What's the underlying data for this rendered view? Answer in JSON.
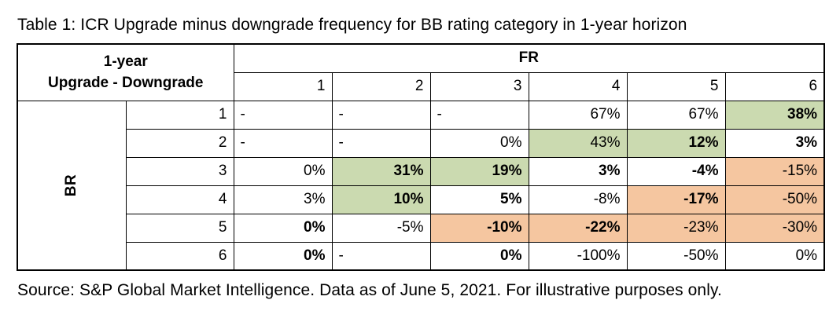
{
  "page": {
    "title": "Table 1: ICR Upgrade minus downgrade frequency for BB rating category in 1-year horizon",
    "source_note": "Source: S&P Global Market Intelligence. Data as of June 5, 2021. For illustrative purposes only."
  },
  "colors": {
    "positive_fill_green": "#cbdab0",
    "negative_fill_orange": "#f5c6a0",
    "border": "#000000",
    "text": "#000000"
  },
  "table": {
    "corner": {
      "line1": "1-year",
      "line2": "Upgrade - Downgrade"
    },
    "col_group_label": "FR",
    "row_group_label": "BR",
    "col_headers": [
      "1",
      "2",
      "3",
      "4",
      "5",
      "6"
    ],
    "row_headers": [
      "1",
      "2",
      "3",
      "4",
      "5",
      "6"
    ],
    "rows": [
      [
        {
          "text": "-",
          "fill": "none",
          "bold": false
        },
        {
          "text": "-",
          "fill": "none",
          "bold": false
        },
        {
          "text": "-",
          "fill": "none",
          "bold": false
        },
        {
          "text": "67%",
          "fill": "none",
          "bold": false
        },
        {
          "text": "67%",
          "fill": "none",
          "bold": false
        },
        {
          "text": "38%",
          "fill": "green",
          "bold": true
        }
      ],
      [
        {
          "text": "-",
          "fill": "none",
          "bold": false
        },
        {
          "text": "-",
          "fill": "none",
          "bold": false
        },
        {
          "text": "0%",
          "fill": "none",
          "bold": false
        },
        {
          "text": "43%",
          "fill": "green",
          "bold": false
        },
        {
          "text": "12%",
          "fill": "green",
          "bold": true
        },
        {
          "text": "3%",
          "fill": "none",
          "bold": true
        }
      ],
      [
        {
          "text": "0%",
          "fill": "none",
          "bold": false
        },
        {
          "text": "31%",
          "fill": "green",
          "bold": true
        },
        {
          "text": "19%",
          "fill": "green",
          "bold": true
        },
        {
          "text": "3%",
          "fill": "none",
          "bold": true
        },
        {
          "text": "-4%",
          "fill": "none",
          "bold": true
        },
        {
          "text": "-15%",
          "fill": "orange",
          "bold": false
        }
      ],
      [
        {
          "text": "3%",
          "fill": "none",
          "bold": false
        },
        {
          "text": "10%",
          "fill": "green",
          "bold": true
        },
        {
          "text": "5%",
          "fill": "none",
          "bold": true
        },
        {
          "text": "-8%",
          "fill": "none",
          "bold": false
        },
        {
          "text": "-17%",
          "fill": "orange",
          "bold": true
        },
        {
          "text": "-50%",
          "fill": "orange",
          "bold": false
        }
      ],
      [
        {
          "text": "0%",
          "fill": "none",
          "bold": true
        },
        {
          "text": "-5%",
          "fill": "none",
          "bold": false
        },
        {
          "text": "-10%",
          "fill": "orange",
          "bold": true
        },
        {
          "text": "-22%",
          "fill": "orange",
          "bold": true
        },
        {
          "text": "-23%",
          "fill": "orange",
          "bold": false
        },
        {
          "text": "-30%",
          "fill": "orange",
          "bold": false
        }
      ],
      [
        {
          "text": "0%",
          "fill": "none",
          "bold": true
        },
        {
          "text": "-",
          "fill": "none",
          "bold": false
        },
        {
          "text": "0%",
          "fill": "none",
          "bold": true
        },
        {
          "text": "-100%",
          "fill": "none",
          "bold": false
        },
        {
          "text": "-50%",
          "fill": "none",
          "bold": false
        },
        {
          "text": "0%",
          "fill": "none",
          "bold": false
        }
      ]
    ]
  }
}
